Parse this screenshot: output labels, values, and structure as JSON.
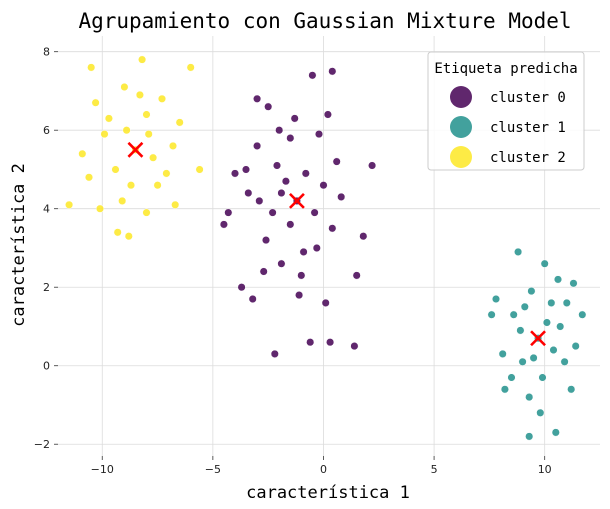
{
  "chart_data": {
    "type": "scatter",
    "title": "Agrupamiento con Gaussian Mixture Model",
    "xlabel": "característica 1",
    "ylabel": "característica 2",
    "xlim": [
      -12,
      12.5
    ],
    "ylim": [
      -2.3,
      8.4
    ],
    "xticks": [
      -10,
      -5,
      0,
      5,
      10
    ],
    "yticks": [
      -2,
      0,
      2,
      4,
      6,
      8
    ],
    "grid": true,
    "legend": {
      "title": "Etiqueta predicha",
      "placement": "top-right",
      "entries": [
        "cluster 0",
        "cluster 1",
        "cluster 2"
      ]
    },
    "colors": {
      "cluster 0": "#440154",
      "cluster 1": "#21918c",
      "cluster 2": "#fde725",
      "centroid": "#ff0000"
    },
    "series": [
      {
        "name": "cluster 0",
        "center": [
          -1.2,
          4.2
        ],
        "spread": [
          1.5,
          1.3
        ],
        "points": [
          [
            -1.2,
            4.2
          ],
          [
            -2.5,
            6.6
          ],
          [
            -3.0,
            6.8
          ],
          [
            -2.0,
            6.0
          ],
          [
            -0.5,
            7.4
          ],
          [
            0.4,
            7.5
          ],
          [
            -1.5,
            5.8
          ],
          [
            0.2,
            6.4
          ],
          [
            -3.5,
            5.0
          ],
          [
            -4.0,
            4.9
          ],
          [
            -4.3,
            3.9
          ],
          [
            -4.5,
            3.6
          ],
          [
            -3.7,
            2.0
          ],
          [
            -3.2,
            1.7
          ],
          [
            -2.2,
            0.3
          ],
          [
            -0.6,
            0.6
          ],
          [
            0.3,
            0.6
          ],
          [
            1.4,
            0.5
          ],
          [
            1.5,
            2.3
          ],
          [
            1.8,
            3.3
          ],
          [
            2.2,
            5.1
          ],
          [
            -2.9,
            4.2
          ],
          [
            -2.6,
            3.2
          ],
          [
            -1.9,
            2.6
          ],
          [
            -1.0,
            2.3
          ],
          [
            -0.3,
            3.0
          ],
          [
            0.4,
            3.5
          ],
          [
            0.8,
            4.3
          ],
          [
            0.6,
            5.2
          ],
          [
            -0.2,
            5.9
          ],
          [
            -1.3,
            6.3
          ],
          [
            -2.1,
            5.1
          ],
          [
            -1.7,
            4.7
          ],
          [
            -0.8,
            4.9
          ],
          [
            0.0,
            4.6
          ],
          [
            -0.4,
            3.9
          ],
          [
            -1.5,
            3.6
          ],
          [
            -2.3,
            3.9
          ],
          [
            -3.0,
            5.6
          ],
          [
            -3.4,
            4.4
          ],
          [
            -2.7,
            2.4
          ],
          [
            -1.1,
            1.8
          ],
          [
            0.1,
            1.6
          ],
          [
            -0.9,
            2.9
          ],
          [
            -1.9,
            4.4
          ]
        ]
      },
      {
        "name": "cluster 1",
        "center": [
          9.7,
          0.7
        ],
        "spread": [
          0.9,
          0.9
        ],
        "points": [
          [
            9.7,
            0.7
          ],
          [
            8.8,
            2.9
          ],
          [
            10.0,
            2.6
          ],
          [
            10.6,
            2.2
          ],
          [
            11.3,
            2.1
          ],
          [
            7.8,
            1.7
          ],
          [
            7.6,
            1.3
          ],
          [
            8.1,
            0.3
          ],
          [
            8.5,
            -0.3
          ],
          [
            8.2,
            -0.6
          ],
          [
            9.3,
            -0.8
          ],
          [
            9.8,
            -1.2
          ],
          [
            10.5,
            -1.7
          ],
          [
            9.3,
            -1.8
          ],
          [
            11.2,
            -0.6
          ],
          [
            11.7,
            1.3
          ],
          [
            11.4,
            0.5
          ],
          [
            10.9,
            0.1
          ],
          [
            9.1,
            1.5
          ],
          [
            10.3,
            1.6
          ],
          [
            9.5,
            0.2
          ],
          [
            8.9,
            0.9
          ],
          [
            10.1,
            1.1
          ],
          [
            9.9,
            -0.3
          ],
          [
            10.7,
            1.0
          ],
          [
            8.6,
            1.3
          ],
          [
            9.4,
            1.9
          ],
          [
            10.4,
            0.4
          ],
          [
            9.0,
            0.1
          ],
          [
            11.0,
            1.6
          ]
        ]
      },
      {
        "name": "cluster 2",
        "center": [
          -8.5,
          5.5
        ],
        "spread": [
          1.2,
          1.0
        ],
        "points": [
          [
            -8.5,
            5.5
          ],
          [
            -10.5,
            7.6
          ],
          [
            -8.2,
            7.8
          ],
          [
            -6.0,
            7.6
          ],
          [
            -11.5,
            4.1
          ],
          [
            -9.3,
            3.4
          ],
          [
            -8.8,
            3.3
          ],
          [
            -5.6,
            5.0
          ],
          [
            -6.7,
            4.1
          ],
          [
            -10.1,
            4.0
          ],
          [
            -7.3,
            6.8
          ],
          [
            -9.7,
            6.3
          ],
          [
            -10.9,
            5.4
          ],
          [
            -7.5,
            4.6
          ],
          [
            -8.0,
            3.9
          ],
          [
            -9.0,
            7.1
          ],
          [
            -8.0,
            6.4
          ],
          [
            -6.8,
            5.6
          ],
          [
            -9.4,
            5.0
          ],
          [
            -10.3,
            6.7
          ],
          [
            -8.7,
            4.6
          ],
          [
            -7.7,
            5.3
          ],
          [
            -9.9,
            5.9
          ],
          [
            -6.5,
            6.2
          ],
          [
            -8.3,
            6.9
          ],
          [
            -10.6,
            4.8
          ],
          [
            -7.1,
            4.9
          ],
          [
            -9.1,
            4.2
          ],
          [
            -8.9,
            6.0
          ],
          [
            -7.9,
            5.9
          ]
        ]
      }
    ]
  }
}
